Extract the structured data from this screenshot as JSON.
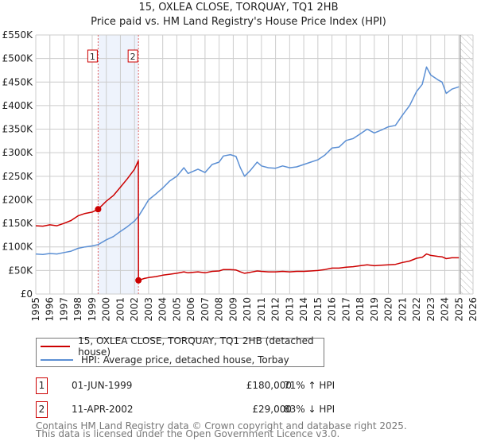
{
  "title_line1": "15, OXLEA CLOSE, TORQUAY, TQ1 2HB",
  "title_line2": "Price paid vs. HM Land Registry's House Price Index (HPI)",
  "chart_data": {
    "type": "line",
    "title": "15, OXLEA CLOSE, TORQUAY, TQ1 2HB — Price paid vs. HM Land Registry's House Price Index (HPI)",
    "xlabel": "",
    "ylabel": "",
    "xlim": [
      1995,
      2026
    ],
    "ylim": [
      0,
      550000
    ],
    "x_ticks": [
      "1995",
      "1996",
      "1997",
      "1998",
      "1999",
      "2000",
      "2001",
      "2002",
      "2003",
      "2004",
      "2005",
      "2006",
      "2007",
      "2008",
      "2009",
      "2010",
      "2011",
      "2012",
      "2013",
      "2014",
      "2015",
      "2016",
      "2017",
      "2018",
      "2019",
      "2020",
      "2021",
      "2022",
      "2023",
      "2024",
      "2025",
      "2026"
    ],
    "y_ticks": [
      {
        "v": 0,
        "label": "£0"
      },
      {
        "v": 50000,
        "label": "£50K"
      },
      {
        "v": 100000,
        "label": "£100K"
      },
      {
        "v": 150000,
        "label": "£150K"
      },
      {
        "v": 200000,
        "label": "£200K"
      },
      {
        "v": 250000,
        "label": "£250K"
      },
      {
        "v": 300000,
        "label": "£300K"
      },
      {
        "v": 350000,
        "label": "£350K"
      },
      {
        "v": 400000,
        "label": "£400K"
      },
      {
        "v": 450000,
        "label": "£450K"
      },
      {
        "v": 500000,
        "label": "£500K"
      },
      {
        "v": 550000,
        "label": "£550K"
      }
    ],
    "grid": true,
    "shaded_period": [
      1999.42,
      2002.28
    ],
    "forecast_hatch_from": 2025.1,
    "series": [
      {
        "name": "15, OXLEA CLOSE, TORQUAY, TQ1 2HB (detached house)",
        "color": "#cc0000",
        "points": [
          [
            1995,
            145
          ],
          [
            1995.5,
            144
          ],
          [
            1996,
            147
          ],
          [
            1996.5,
            145
          ],
          [
            1997,
            150
          ],
          [
            1997.5,
            156
          ],
          [
            1998,
            166
          ],
          [
            1998.5,
            171
          ],
          [
            1999,
            174
          ],
          [
            1999.42,
            180
          ],
          [
            2000,
            197
          ],
          [
            2000.5,
            209
          ],
          [
            2001,
            227
          ],
          [
            2001.5,
            245
          ],
          [
            2002,
            265
          ],
          [
            2002.27,
            283
          ],
          [
            2002.28,
            29
          ],
          [
            2002.7,
            33
          ],
          [
            2003,
            35
          ],
          [
            2003.5,
            37
          ],
          [
            2004,
            40
          ],
          [
            2004.5,
            42
          ],
          [
            2005,
            44
          ],
          [
            2005.5,
            47
          ],
          [
            2005.8,
            45
          ],
          [
            2006.5,
            47
          ],
          [
            2007,
            45
          ],
          [
            2007.5,
            48
          ],
          [
            2008,
            49
          ],
          [
            2008.3,
            52
          ],
          [
            2008.8,
            52
          ],
          [
            2009.2,
            51
          ],
          [
            2009.5,
            47
          ],
          [
            2009.8,
            44
          ],
          [
            2010.2,
            46
          ],
          [
            2010.7,
            49
          ],
          [
            2011,
            48
          ],
          [
            2011.5,
            47
          ],
          [
            2012,
            47
          ],
          [
            2012.5,
            48
          ],
          [
            2013,
            47
          ],
          [
            2013.5,
            48
          ],
          [
            2014,
            48
          ],
          [
            2014.5,
            49
          ],
          [
            2015,
            50
          ],
          [
            2015.5,
            52
          ],
          [
            2016,
            55
          ],
          [
            2016.5,
            55
          ],
          [
            2017,
            57
          ],
          [
            2017.5,
            58
          ],
          [
            2018,
            60
          ],
          [
            2018.5,
            62
          ],
          [
            2019,
            60
          ],
          [
            2019.5,
            61
          ],
          [
            2020,
            62
          ],
          [
            2020.5,
            63
          ],
          [
            2021,
            67
          ],
          [
            2021.5,
            70
          ],
          [
            2022,
            76
          ],
          [
            2022.4,
            78
          ],
          [
            2022.7,
            85
          ],
          [
            2023,
            82
          ],
          [
            2023.5,
            80
          ],
          [
            2023.8,
            79
          ],
          [
            2024.1,
            75
          ],
          [
            2024.5,
            77
          ],
          [
            2025,
            77
          ]
        ]
      },
      {
        "name": "HPI: Average price, detached house, Torbay",
        "color": "#5b8fd4",
        "points": [
          [
            1995,
            85
          ],
          [
            1995.5,
            84
          ],
          [
            1996,
            86
          ],
          [
            1996.5,
            85
          ],
          [
            1997,
            88
          ],
          [
            1997.5,
            91
          ],
          [
            1998,
            97
          ],
          [
            1998.5,
            100
          ],
          [
            1999,
            102
          ],
          [
            1999.42,
            105
          ],
          [
            2000,
            115
          ],
          [
            2000.5,
            122
          ],
          [
            2001,
            133
          ],
          [
            2001.5,
            143
          ],
          [
            2002,
            155
          ],
          [
            2002.28,
            165
          ],
          [
            2002.7,
            185
          ],
          [
            2003,
            200
          ],
          [
            2003.5,
            212
          ],
          [
            2004,
            225
          ],
          [
            2004.5,
            240
          ],
          [
            2005,
            250
          ],
          [
            2005.5,
            268
          ],
          [
            2005.8,
            256
          ],
          [
            2006.5,
            265
          ],
          [
            2007,
            258
          ],
          [
            2007.5,
            275
          ],
          [
            2008,
            280
          ],
          [
            2008.3,
            293
          ],
          [
            2008.8,
            296
          ],
          [
            2009.2,
            292
          ],
          [
            2009.5,
            268
          ],
          [
            2009.8,
            250
          ],
          [
            2010.2,
            262
          ],
          [
            2010.7,
            280
          ],
          [
            2011,
            272
          ],
          [
            2011.5,
            268
          ],
          [
            2012,
            267
          ],
          [
            2012.5,
            272
          ],
          [
            2013,
            268
          ],
          [
            2013.5,
            270
          ],
          [
            2014,
            275
          ],
          [
            2014.5,
            280
          ],
          [
            2015,
            285
          ],
          [
            2015.5,
            295
          ],
          [
            2016,
            310
          ],
          [
            2016.5,
            312
          ],
          [
            2017,
            326
          ],
          [
            2017.5,
            330
          ],
          [
            2018,
            340
          ],
          [
            2018.5,
            350
          ],
          [
            2019,
            342
          ],
          [
            2019.5,
            348
          ],
          [
            2020,
            355
          ],
          [
            2020.5,
            358
          ],
          [
            2021,
            380
          ],
          [
            2021.5,
            400
          ],
          [
            2022,
            430
          ],
          [
            2022.4,
            445
          ],
          [
            2022.7,
            482
          ],
          [
            2023,
            465
          ],
          [
            2023.5,
            455
          ],
          [
            2023.8,
            450
          ],
          [
            2024.1,
            426
          ],
          [
            2024.5,
            435
          ],
          [
            2025,
            440
          ]
        ]
      }
    ],
    "points_unit": "thousands GBP",
    "sales": [
      {
        "label": "1",
        "x": 1999.42,
        "value": 180000
      },
      {
        "label": "2",
        "x": 2002.28,
        "value": 29000
      }
    ]
  },
  "legend": {
    "property": "15, OXLEA CLOSE, TORQUAY, TQ1 2HB (detached house)",
    "hpi": "HPI: Average price, detached house, Torbay"
  },
  "sales_table": [
    {
      "num": "1",
      "date": "01-JUN-1999",
      "price": "£180,000",
      "hpi": "71% ↑ HPI"
    },
    {
      "num": "2",
      "date": "11-APR-2002",
      "price": "£29,000",
      "hpi": "83% ↓ HPI"
    }
  ],
  "footer": {
    "line1": "Contains HM Land Registry data © Crown copyright and database right 2025.",
    "line2": "This data is licensed under the Open Government Licence v3.0."
  }
}
